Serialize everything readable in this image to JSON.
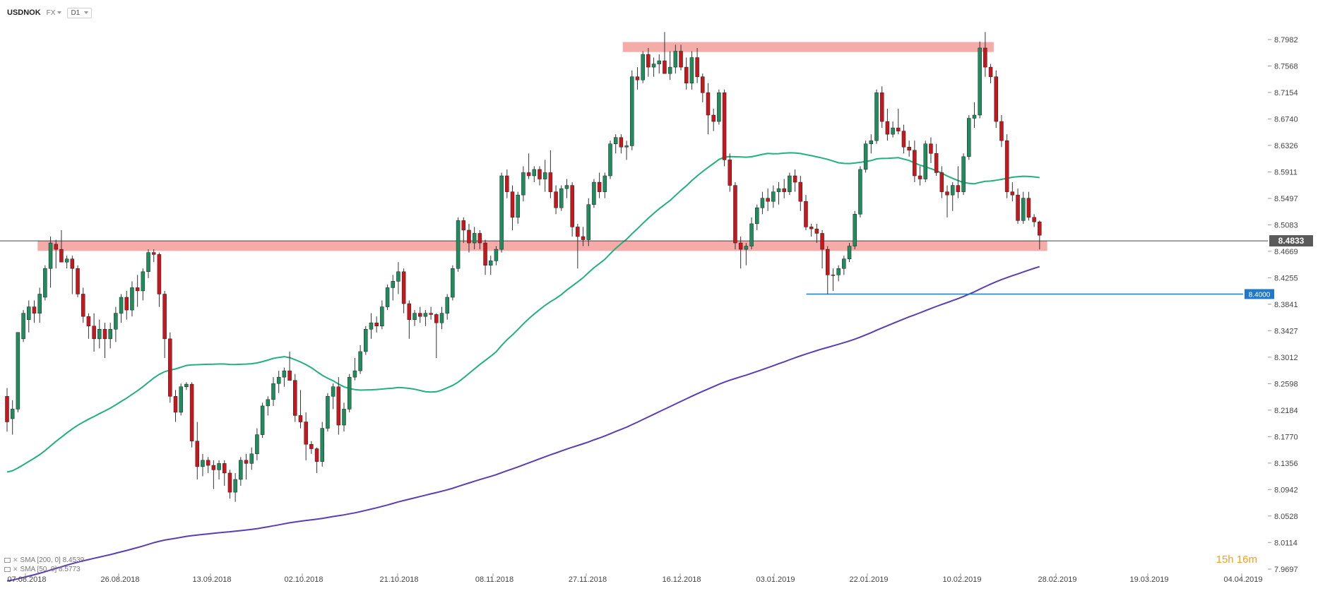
{
  "toolbar": {
    "symbol": "USDNOK",
    "market": "FX",
    "timeframe": "D1"
  },
  "legend": [
    {
      "label": "SMA [200, 0] 8.4539",
      "color": "#5b3db5"
    },
    {
      "label": "SMA [50, 0] 8.5773",
      "color": "#22b07d"
    }
  ],
  "countdown": {
    "hours": "15",
    "h_unit": "h",
    "minutes": "16",
    "m_unit": "m"
  },
  "chart_data": {
    "type": "candlestick",
    "symbol": "USDNOK",
    "timeframe": "D1",
    "ylim": [
      7.9697,
      8.7982
    ],
    "y_ticks": [
      "8.7982",
      "8.7568",
      "8.7154",
      "8.6740",
      "8.6326",
      "8.5911",
      "8.5497",
      "8.5083",
      "8.4669",
      "8.4255",
      "8.3841",
      "8.3427",
      "8.3012",
      "8.2598",
      "8.2184",
      "8.1770",
      "8.1356",
      "8.0942",
      "8.0528",
      "8.0114",
      "7.9697"
    ],
    "x_ticks": [
      "07.08.2018",
      "26.08.2018",
      "13.09.2018",
      "02.10.2018",
      "21.10.2018",
      "08.11.2018",
      "27.11.2018",
      "16.12.2018",
      "03.01.2019",
      "22.01.2019",
      "10.02.2019",
      "28.02.2019",
      "19.03.2019",
      "04.04.2019"
    ],
    "current_price": {
      "label": "8.4833",
      "value": 8.4833
    },
    "horizontal_line": {
      "label": "8.4000",
      "value": 8.4,
      "start_index": 209
    },
    "zones": [
      {
        "from": 8.4676,
        "to": 8.4832,
        "start_index": 8,
        "end_index": 272,
        "color": "#f4a7a3"
      },
      {
        "from": 8.7787,
        "to": 8.7943,
        "start_index": 161,
        "end_index": 258,
        "color": "#f4a7a3"
      }
    ],
    "colors": {
      "up": "#1e8c5c",
      "down": "#c8161d",
      "wick": "#333333",
      "sma50": "#22b07d",
      "sma200": "#5b3db5",
      "price_line": "#444444",
      "level_line": "#1f78c8",
      "zone": "#f4a7a3"
    },
    "candle_start_index": 0,
    "candle_end_index": 270,
    "candle_step_days": 0.707,
    "candles_ohlc": [
      [
        8.24,
        8.253,
        8.185,
        8.2
      ],
      [
        8.205,
        8.234,
        8.18,
        8.22
      ],
      [
        8.22,
        8.32,
        8.215,
        8.34
      ],
      [
        8.33,
        8.375,
        8.325,
        8.37
      ],
      [
        8.36,
        8.39,
        8.34,
        8.38
      ],
      [
        8.38,
        8.39,
        8.355,
        8.37
      ],
      [
        8.37,
        8.41,
        8.355,
        8.4
      ],
      [
        8.395,
        8.445,
        8.39,
        8.44
      ],
      [
        8.44,
        8.49,
        8.41,
        8.48
      ],
      [
        8.478,
        8.485,
        8.44,
        8.47
      ],
      [
        8.47,
        8.5,
        8.455,
        8.45
      ],
      [
        8.45,
        8.46,
        8.44,
        8.455
      ],
      [
        8.455,
        8.46,
        8.4,
        8.44
      ],
      [
        8.44,
        8.445,
        8.395,
        8.4
      ],
      [
        8.4,
        8.41,
        8.355,
        8.365
      ],
      [
        8.365,
        8.37,
        8.33,
        8.35
      ],
      [
        8.35,
        8.37,
        8.31,
        8.33
      ],
      [
        8.33,
        8.36,
        8.315,
        8.345
      ],
      [
        8.345,
        8.355,
        8.3,
        8.33
      ],
      [
        8.33,
        8.355,
        8.315,
        8.345
      ],
      [
        8.345,
        8.38,
        8.325,
        8.37
      ],
      [
        8.37,
        8.4,
        8.355,
        8.395
      ],
      [
        8.395,
        8.405,
        8.36,
        8.375
      ],
      [
        8.375,
        8.42,
        8.365,
        8.41
      ],
      [
        8.41,
        8.43,
        8.38,
        8.405
      ],
      [
        8.405,
        8.44,
        8.39,
        8.435
      ],
      [
        8.435,
        8.47,
        8.425,
        8.465
      ],
      [
        8.465,
        8.47,
        8.45,
        8.462
      ],
      [
        8.462,
        8.465,
        8.38,
        8.4
      ],
      [
        8.4,
        8.405,
        8.3,
        8.33
      ],
      [
        8.33,
        8.34,
        8.23,
        8.24
      ],
      [
        8.24,
        8.25,
        8.2,
        8.215
      ],
      [
        8.215,
        8.26,
        8.21,
        8.255
      ],
      [
        8.255,
        8.262,
        8.25,
        8.259
      ],
      [
        8.259,
        8.262,
        8.16,
        8.17
      ],
      [
        8.17,
        8.2,
        8.11,
        8.13
      ],
      [
        8.13,
        8.15,
        8.115,
        8.14
      ],
      [
        8.14,
        8.145,
        8.12,
        8.132
      ],
      [
        8.132,
        8.14,
        8.095,
        8.125
      ],
      [
        8.125,
        8.14,
        8.11,
        8.135
      ],
      [
        8.135,
        8.14,
        8.1,
        8.12
      ],
      [
        8.12,
        8.125,
        8.08,
        8.09
      ],
      [
        8.09,
        8.12,
        8.075,
        8.11
      ],
      [
        8.11,
        8.145,
        8.1,
        8.14
      ],
      [
        8.14,
        8.15,
        8.11,
        8.135
      ],
      [
        8.135,
        8.16,
        8.125,
        8.15
      ],
      [
        8.15,
        8.19,
        8.14,
        8.18
      ],
      [
        8.18,
        8.23,
        8.175,
        8.225
      ],
      [
        8.225,
        8.24,
        8.21,
        8.235
      ],
      [
        8.235,
        8.27,
        8.225,
        8.26
      ],
      [
        8.26,
        8.28,
        8.245,
        8.27
      ],
      [
        8.27,
        8.285,
        8.255,
        8.28
      ],
      [
        8.28,
        8.31,
        8.27,
        8.265
      ],
      [
        8.265,
        8.275,
        8.2,
        8.21
      ],
      [
        8.21,
        8.25,
        8.19,
        8.2
      ],
      [
        8.2,
        8.215,
        8.14,
        8.165
      ],
      [
        8.165,
        8.17,
        8.15,
        8.158
      ],
      [
        8.158,
        8.16,
        8.12,
        8.138
      ],
      [
        8.138,
        8.2,
        8.13,
        8.19
      ],
      [
        8.19,
        8.245,
        8.185,
        8.24
      ],
      [
        8.24,
        8.26,
        8.22,
        8.255
      ],
      [
        8.255,
        8.27,
        8.18,
        8.195
      ],
      [
        8.195,
        8.23,
        8.185,
        8.22
      ],
      [
        8.22,
        8.275,
        8.215,
        8.27
      ],
      [
        8.27,
        8.3,
        8.265,
        8.28
      ],
      [
        8.28,
        8.32,
        8.275,
        8.31
      ],
      [
        8.31,
        8.35,
        8.305,
        8.345
      ],
      [
        8.345,
        8.37,
        8.33,
        8.355
      ],
      [
        8.355,
        8.365,
        8.34,
        8.35
      ],
      [
        8.35,
        8.39,
        8.345,
        8.38
      ],
      [
        8.38,
        8.415,
        8.375,
        8.41
      ],
      [
        8.41,
        8.43,
        8.39,
        8.42
      ],
      [
        8.42,
        8.45,
        8.4,
        8.435
      ],
      [
        8.435,
        8.44,
        8.37,
        8.385
      ],
      [
        8.385,
        8.39,
        8.33,
        8.36
      ],
      [
        8.36,
        8.375,
        8.35,
        8.37
      ],
      [
        8.37,
        8.38,
        8.355,
        8.365
      ],
      [
        8.365,
        8.375,
        8.35,
        8.37
      ],
      [
        8.37,
        8.38,
        8.36,
        8.368
      ],
      [
        8.368,
        8.37,
        8.3,
        8.355
      ],
      [
        8.355,
        8.38,
        8.345,
        8.37
      ],
      [
        8.37,
        8.4,
        8.36,
        8.395
      ],
      [
        8.395,
        8.445,
        8.39,
        8.44
      ],
      [
        8.44,
        8.52,
        8.435,
        8.515
      ],
      [
        8.515,
        8.52,
        8.48,
        8.5
      ],
      [
        8.5,
        8.51,
        8.465,
        8.48
      ],
      [
        8.48,
        8.505,
        8.47,
        8.495
      ],
      [
        8.495,
        8.5,
        8.47,
        8.48
      ],
      [
        8.48,
        8.485,
        8.43,
        8.445
      ],
      [
        8.445,
        8.46,
        8.43,
        8.452
      ],
      [
        8.452,
        8.475,
        8.445,
        8.47
      ],
      [
        8.47,
        8.59,
        8.465,
        8.585
      ],
      [
        8.585,
        8.595,
        8.55,
        8.56
      ],
      [
        8.56,
        8.57,
        8.5,
        8.52
      ],
      [
        8.52,
        8.56,
        8.51,
        8.555
      ],
      [
        8.555,
        8.6,
        8.545,
        8.59
      ],
      [
        8.59,
        8.62,
        8.58,
        8.585
      ],
      [
        8.585,
        8.6,
        8.575,
        8.595
      ],
      [
        8.595,
        8.6,
        8.57,
        8.58
      ],
      [
        8.58,
        8.61,
        8.56,
        8.59
      ],
      [
        8.59,
        8.625,
        8.55,
        8.56
      ],
      [
        8.56,
        8.57,
        8.525,
        8.535
      ],
      [
        8.535,
        8.57,
        8.53,
        8.565
      ],
      [
        8.565,
        8.58,
        8.55,
        8.57
      ],
      [
        8.57,
        8.575,
        8.49,
        8.505
      ],
      [
        8.505,
        8.51,
        8.44,
        8.49
      ],
      [
        8.49,
        8.505,
        8.475,
        8.485
      ],
      [
        8.485,
        8.55,
        8.475,
        8.54
      ],
      [
        8.54,
        8.58,
        8.535,
        8.575
      ],
      [
        8.575,
        8.59,
        8.55,
        8.56
      ],
      [
        8.56,
        8.59,
        8.55,
        8.585
      ],
      [
        8.585,
        8.64,
        8.58,
        8.635
      ],
      [
        8.635,
        8.65,
        8.62,
        8.645
      ],
      [
        8.645,
        8.65,
        8.62,
        8.63
      ],
      [
        8.63,
        8.64,
        8.61,
        8.632
      ],
      [
        8.632,
        8.75,
        8.625,
        8.74
      ],
      [
        8.74,
        8.755,
        8.72,
        8.735
      ],
      [
        8.735,
        8.78,
        8.73,
        8.775
      ],
      [
        8.775,
        8.785,
        8.74,
        8.755
      ],
      [
        8.755,
        8.77,
        8.74,
        8.76
      ],
      [
        8.76,
        8.775,
        8.745,
        8.765
      ],
      [
        8.765,
        8.81,
        8.75,
        8.745
      ],
      [
        8.745,
        8.78,
        8.735,
        8.755
      ],
      [
        8.755,
        8.79,
        8.745,
        8.78
      ],
      [
        8.78,
        8.79,
        8.75,
        8.755
      ],
      [
        8.755,
        8.77,
        8.72,
        8.73
      ],
      [
        8.73,
        8.78,
        8.72,
        8.77
      ],
      [
        8.77,
        8.785,
        8.73,
        8.74
      ],
      [
        8.74,
        8.745,
        8.7,
        8.715
      ],
      [
        8.715,
        8.73,
        8.65,
        8.68
      ],
      [
        8.68,
        8.69,
        8.655,
        8.67
      ],
      [
        8.67,
        8.72,
        8.665,
        8.715
      ],
      [
        8.715,
        8.72,
        8.6,
        8.61
      ],
      [
        8.61,
        8.62,
        8.56,
        8.57
      ],
      [
        8.57,
        8.575,
        8.47,
        8.48
      ],
      [
        8.48,
        8.49,
        8.44,
        8.47
      ],
      [
        8.47,
        8.48,
        8.445,
        8.475
      ],
      [
        8.475,
        8.52,
        8.47,
        8.51
      ],
      [
        8.51,
        8.54,
        8.5,
        8.535
      ],
      [
        8.535,
        8.56,
        8.525,
        8.55
      ],
      [
        8.55,
        8.565,
        8.53,
        8.545
      ],
      [
        8.545,
        8.57,
        8.535,
        8.56
      ],
      [
        8.56,
        8.575,
        8.54,
        8.565
      ],
      [
        8.565,
        8.58,
        8.55,
        8.56
      ],
      [
        8.56,
        8.59,
        8.555,
        8.585
      ],
      [
        8.585,
        8.595,
        8.56,
        8.575
      ],
      [
        8.575,
        8.585,
        8.53,
        8.545
      ],
      [
        8.545,
        8.555,
        8.5,
        8.505
      ],
      [
        8.505,
        8.51,
        8.49,
        8.502
      ],
      [
        8.502,
        8.51,
        8.48,
        8.495
      ],
      [
        8.495,
        8.5,
        8.44,
        8.47
      ],
      [
        8.47,
        8.475,
        8.4,
        8.43
      ],
      [
        8.43,
        8.44,
        8.405,
        8.43
      ],
      [
        8.43,
        8.445,
        8.42,
        8.44
      ],
      [
        8.44,
        8.46,
        8.43,
        8.455
      ],
      [
        8.455,
        8.48,
        8.45,
        8.475
      ],
      [
        8.475,
        8.53,
        8.47,
        8.525
      ],
      [
        8.525,
        8.6,
        8.52,
        8.595
      ],
      [
        8.595,
        8.64,
        8.59,
        8.635
      ],
      [
        8.635,
        8.65,
        8.62,
        8.64
      ],
      [
        8.64,
        8.72,
        8.635,
        8.715
      ],
      [
        8.715,
        8.725,
        8.66,
        8.67
      ],
      [
        8.67,
        8.69,
        8.64,
        8.65
      ],
      [
        8.65,
        8.67,
        8.645,
        8.66
      ],
      [
        8.66,
        8.69,
        8.65,
        8.655
      ],
      [
        8.655,
        8.665,
        8.62,
        8.63
      ],
      [
        8.63,
        8.64,
        8.615,
        8.625
      ],
      [
        8.625,
        8.64,
        8.575,
        8.585
      ],
      [
        8.585,
        8.6,
        8.57,
        8.58
      ],
      [
        8.58,
        8.64,
        8.575,
        8.635
      ],
      [
        8.635,
        8.645,
        8.605,
        8.62
      ],
      [
        8.62,
        8.635,
        8.585,
        8.59
      ],
      [
        8.59,
        8.6,
        8.55,
        8.56
      ],
      [
        8.56,
        8.57,
        8.52,
        8.555
      ],
      [
        8.555,
        8.575,
        8.53,
        8.57
      ],
      [
        8.57,
        8.6,
        8.55,
        8.56
      ],
      [
        8.56,
        8.62,
        8.555,
        8.615
      ],
      [
        8.615,
        8.68,
        8.61,
        8.675
      ],
      [
        8.675,
        8.7,
        8.66,
        8.68
      ],
      [
        8.68,
        8.795,
        8.675,
        8.785
      ],
      [
        8.785,
        8.81,
        8.74,
        8.755
      ],
      [
        8.755,
        8.76,
        8.73,
        8.74
      ],
      [
        8.74,
        8.75,
        8.66,
        8.67
      ],
      [
        8.67,
        8.68,
        8.63,
        8.64
      ],
      [
        8.64,
        8.65,
        8.55,
        8.56
      ],
      [
        8.56,
        8.575,
        8.545,
        8.555
      ],
      [
        8.555,
        8.565,
        8.51,
        8.515
      ],
      [
        8.515,
        8.56,
        8.51,
        8.55
      ],
      [
        8.55,
        8.56,
        8.515,
        8.52
      ],
      [
        8.52,
        8.525,
        8.505,
        8.513
      ],
      [
        8.513,
        8.515,
        8.47,
        8.492
      ]
    ]
  }
}
